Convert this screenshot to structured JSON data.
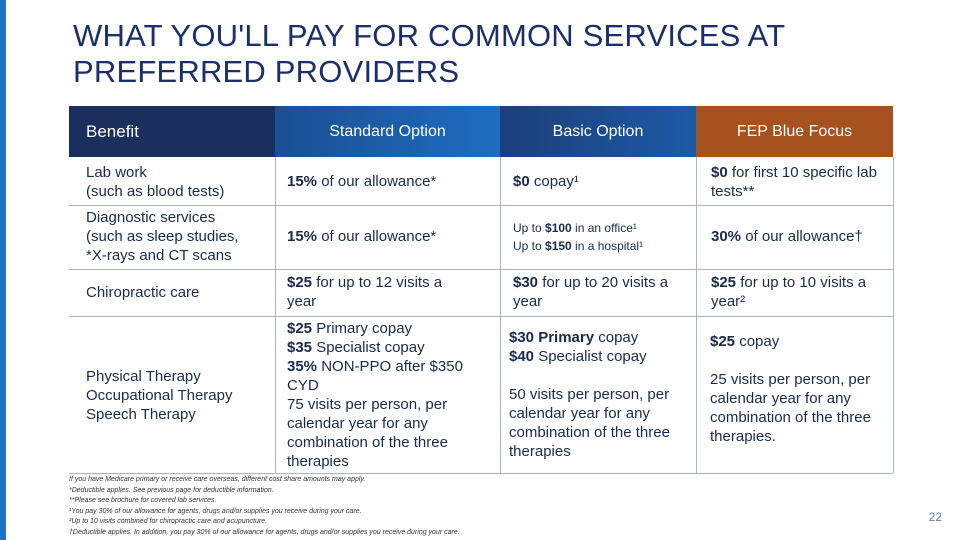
{
  "title": {
    "line1": "WHAT YOU'LL PAY FOR COMMON SERVICES AT",
    "line2": "PREFERRED PROVIDERS"
  },
  "table": {
    "headers": {
      "benefit": "Benefit",
      "standard": "Standard Option",
      "basic": "Basic Option",
      "fep": "FEP Blue Focus"
    },
    "rows": [
      {
        "benefit": [
          "Lab work",
          "(such as blood tests)"
        ],
        "standard": {
          "bold": "15%",
          "text": " of our allowance*"
        },
        "basic": {
          "bold": "$0",
          "text": " copay¹"
        },
        "fep": {
          "bold": "$0",
          "text": " for first 10 specific lab tests**"
        }
      },
      {
        "benefit": [
          "Diagnostic services",
          "(such as sleep studies,",
          "*X-rays and CT scans"
        ],
        "standard": {
          "bold": "15%",
          "text": " of our allowance*"
        },
        "basic": {
          "line1_pre": "Up to ",
          "line1_bold": "$100",
          "line1_post": " in an office¹",
          "line2_pre": "Up to ",
          "line2_bold": "$150",
          "line2_post": " in a hospital¹"
        },
        "fep": {
          "bold": "30%",
          "text": " of our allowance†"
        }
      },
      {
        "benefit": [
          "Chiropractic care"
        ],
        "standard": {
          "bold": "$25",
          "text": " for up to 12 visits a year"
        },
        "basic": {
          "bold": "$30",
          "text": " for up to 20 visits a year"
        },
        "fep": {
          "bold": "$25",
          "text": " for up to 10 visits a year²"
        }
      },
      {
        "benefit": [
          "Physical Therapy",
          "Occupational Therapy",
          "Speech Therapy"
        ],
        "standard": {
          "l1_bold": "$25",
          "l1_text": " Primary copay",
          "l2_bold": "$35",
          "l2_text": " Specialist copay",
          "l3_bold": "35%",
          "l3_text": " NON-PPO after $350 CYD",
          "l4_text": "75 visits per person, per calendar year for any combination of the three therapies"
        },
        "basic": {
          "l1_bold": "$30 Primary",
          "l1_text": " copay",
          "l2_bold": "$40",
          "l2_text": " Specialist copay",
          "l3_text": "50 visits per person, per calendar year for any combination of the three therapies"
        },
        "fep": {
          "l1_bold": "$25",
          "l1_text": " copay",
          "l2_text": "25 visits per person, per calendar year for any combination of the three therapies."
        }
      }
    ]
  },
  "footnotes": [
    "If you have Medicare primary or receive care overseas, different cost share amounts may apply.",
    "*Deductible applies. See previous page for deductible information.",
    "**Please see brochure for covered lab services.",
    "¹You pay 30% of our allowance for agents, drugs and/or supplies you receive during your care.",
    "²Up to 10 visits combined for chiropractic care and acupuncture.",
    "†Deductible applies. In addition, you pay 30% of our allowance for agents, drugs and/or supplies you receive during your care."
  ],
  "page_number": "22",
  "colors": {
    "accent_bar": "#1f6fc7",
    "header_benefit": "#1b2f5e",
    "header_standard": "#1e6dc0",
    "header_basic": "#1d5aa6",
    "header_fep": "#a6521e"
  }
}
